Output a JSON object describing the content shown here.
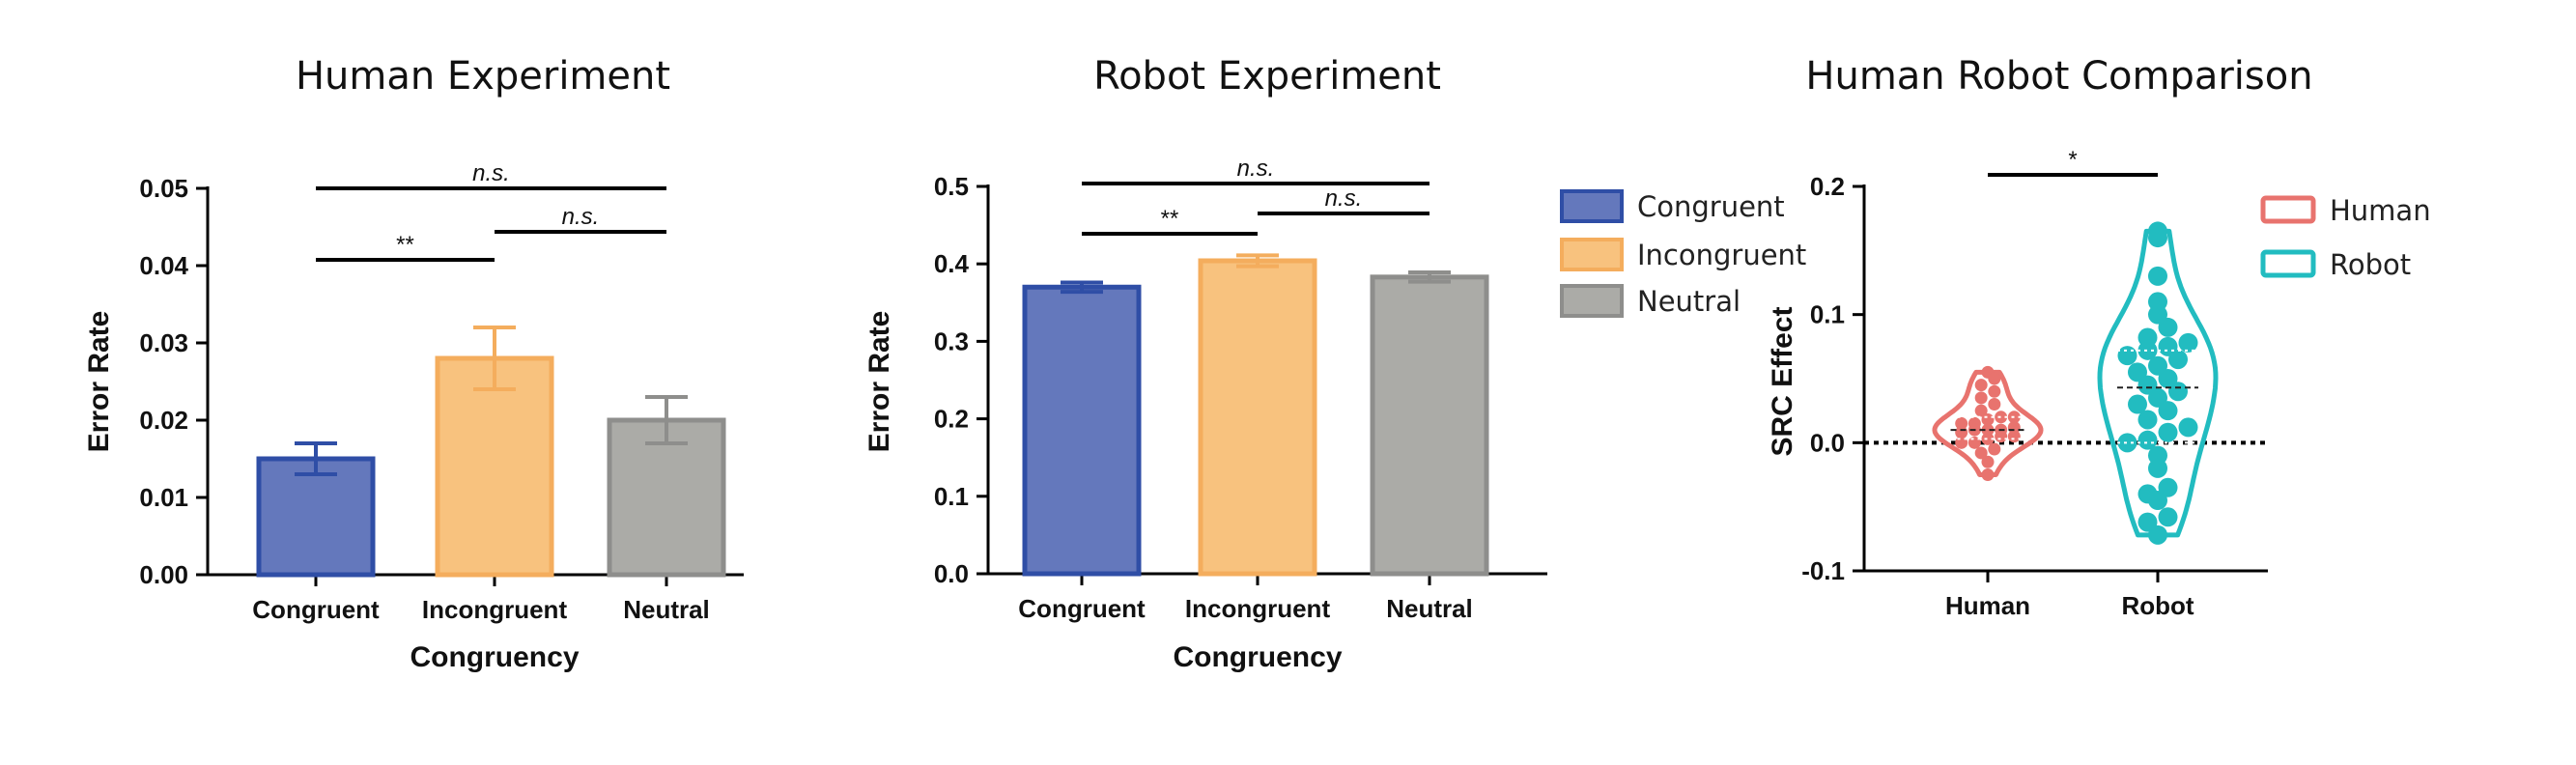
{
  "colors": {
    "congruent": "#6478BC",
    "congruent_edge": "#2F4EA6",
    "incongruent": "#F8C27E",
    "incongruent_edge": "#F4AD5D",
    "neutral": "#ABABA7",
    "neutral_edge": "#8E8E8C",
    "human": "#E8736E",
    "robot": "#22BCC0"
  },
  "chart_data": [
    {
      "type": "bar",
      "title": "Human Experiment",
      "xlabel": "Congruency",
      "ylabel": "Error Rate",
      "categories": [
        "Congruent",
        "Incongruent",
        "Neutral"
      ],
      "values": [
        0.015,
        0.028,
        0.02
      ],
      "errors": [
        0.002,
        0.004,
        0.003
      ],
      "ylim": [
        0,
        0.05
      ],
      "yticks": [
        "0.00",
        "0.01",
        "0.02",
        "0.03",
        "0.04",
        "0.05"
      ],
      "significance": [
        {
          "from": "Congruent",
          "to": "Neutral",
          "label": "n.s."
        },
        {
          "from": "Incongruent",
          "to": "Neutral",
          "label": "n.s."
        },
        {
          "from": "Congruent",
          "to": "Incongruent",
          "label": "**"
        }
      ]
    },
    {
      "type": "bar",
      "title": "Robot Experiment",
      "xlabel": "Congruency",
      "ylabel": "Error Rate",
      "categories": [
        "Congruent",
        "Incongruent",
        "Neutral"
      ],
      "values": [
        0.37,
        0.404,
        0.383
      ],
      "errors": [
        0.006,
        0.007,
        0.006
      ],
      "ylim": [
        0,
        0.5
      ],
      "yticks": [
        "0.0",
        "0.1",
        "0.2",
        "0.3",
        "0.4",
        "0.5"
      ],
      "legend": [
        "Congruent",
        "Incongruent",
        "Neutral"
      ],
      "legend_position": "right",
      "significance": [
        {
          "from": "Congruent",
          "to": "Neutral",
          "label": "n.s."
        },
        {
          "from": "Incongruent",
          "to": "Neutral",
          "label": "n.s."
        },
        {
          "from": "Congruent",
          "to": "Incongruent",
          "label": "**"
        }
      ]
    },
    {
      "type": "violin",
      "title": "Human Robot Comparison",
      "xlabel": "",
      "ylabel": "SRC Effect",
      "categories": [
        "Human",
        "Robot"
      ],
      "ylim": [
        -0.1,
        0.2
      ],
      "yticks": [
        "-0.1",
        "0.0",
        "0.1",
        "0.2"
      ],
      "reference_line": 0.0,
      "legend": [
        "Human",
        "Robot"
      ],
      "legend_position": "right",
      "significance": [
        {
          "from": "Human",
          "to": "Robot",
          "label": "*"
        }
      ],
      "series": [
        {
          "name": "Human",
          "median": 0.01,
          "quartiles": [
            0.003,
            0.02
          ],
          "points": [
            -0.025,
            -0.015,
            -0.008,
            -0.005,
            0.0,
            0.0,
            0.003,
            0.005,
            0.005,
            0.008,
            0.01,
            0.01,
            0.01,
            0.012,
            0.015,
            0.015,
            0.018,
            0.02,
            0.02,
            0.025,
            0.03,
            0.035,
            0.04,
            0.045,
            0.05,
            0.055
          ]
        },
        {
          "name": "Robot",
          "median": 0.043,
          "quartiles": [
            0.0,
            0.072
          ],
          "points": [
            -0.072,
            -0.062,
            -0.058,
            -0.045,
            -0.04,
            -0.035,
            -0.02,
            -0.01,
            0.0,
            0.002,
            0.008,
            0.012,
            0.018,
            0.025,
            0.03,
            0.035,
            0.04,
            0.045,
            0.05,
            0.055,
            0.06,
            0.065,
            0.068,
            0.072,
            0.075,
            0.078,
            0.082,
            0.09,
            0.1,
            0.11,
            0.13,
            0.16,
            0.165
          ]
        }
      ]
    }
  ]
}
